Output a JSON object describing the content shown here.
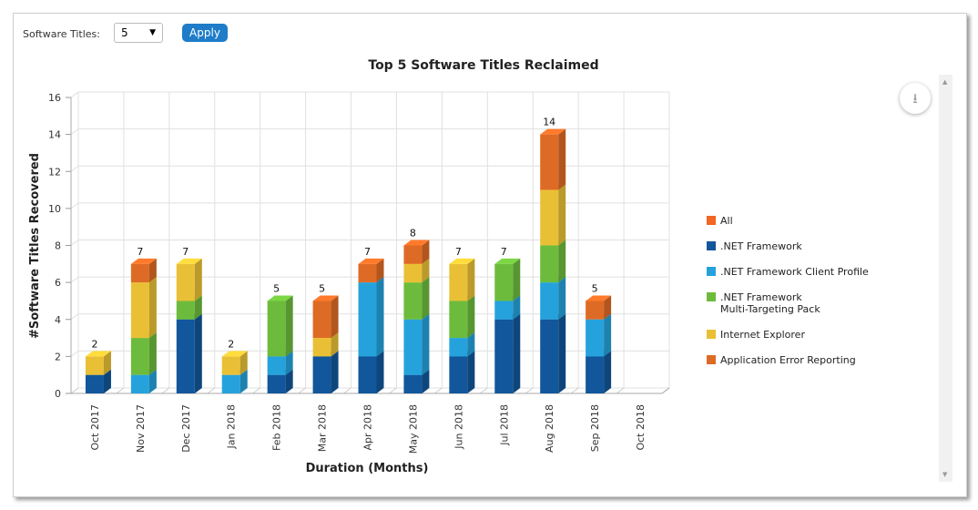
{
  "controls": {
    "software_titles_label": "Software Titles:",
    "software_titles_value": "5",
    "apply_label": "Apply"
  },
  "icons": {
    "dropdown": "caret-down-icon",
    "download": "download-icon"
  },
  "chart_data": {
    "type": "bar",
    "stacked": true,
    "style": "3d",
    "title": "Top 5 Software Titles Reclaimed",
    "xlabel": "Duration (Months)",
    "ylabel": "#Software Titles Recovered",
    "ylim": [
      0,
      16
    ],
    "yticks": [
      0,
      2,
      4,
      6,
      8,
      10,
      12,
      14,
      16
    ],
    "grid": true,
    "legend": "right",
    "categories": [
      "Oct 2017",
      "Nov 2017",
      "Dec 2017",
      "Jan 2018",
      "Feb 2018",
      "Mar 2018",
      "Apr 2018",
      "May 2018",
      "Jun 2018",
      "Jul 2018",
      "Aug 2018",
      "Sep 2018",
      "Oct 2018"
    ],
    "totals": [
      2,
      7,
      7,
      2,
      5,
      5,
      7,
      8,
      7,
      7,
      14,
      5,
      0
    ],
    "series": [
      {
        "name": "All",
        "color": "#f26522",
        "values": [
          0,
          0,
          0,
          0,
          0,
          0,
          0,
          0,
          0,
          0,
          0,
          0,
          0
        ]
      },
      {
        "name": ".NET Framework",
        "color": "#12579b",
        "values": [
          1,
          0,
          4,
          0,
          1,
          2,
          2,
          1,
          2,
          4,
          4,
          2,
          0
        ]
      },
      {
        "name": ".NET Framework Client Profile",
        "color": "#25a2dc",
        "values": [
          0,
          1,
          0,
          1,
          1,
          0,
          4,
          3,
          1,
          1,
          2,
          2,
          0
        ]
      },
      {
        "name": ".NET Framework Multi-Targeting Pack",
        "color": "#6dbb3c",
        "values": [
          0,
          2,
          1,
          0,
          3,
          0,
          0,
          2,
          2,
          2,
          2,
          0,
          0
        ]
      },
      {
        "name": "Internet Explorer",
        "color": "#e9c035",
        "values": [
          1,
          3,
          2,
          1,
          0,
          1,
          0,
          1,
          2,
          0,
          3,
          0,
          0
        ]
      },
      {
        "name": "Application Error Reporting",
        "color": "#de6b25",
        "values": [
          0,
          1,
          0,
          0,
          0,
          2,
          1,
          1,
          0,
          0,
          3,
          1,
          0
        ]
      }
    ]
  }
}
